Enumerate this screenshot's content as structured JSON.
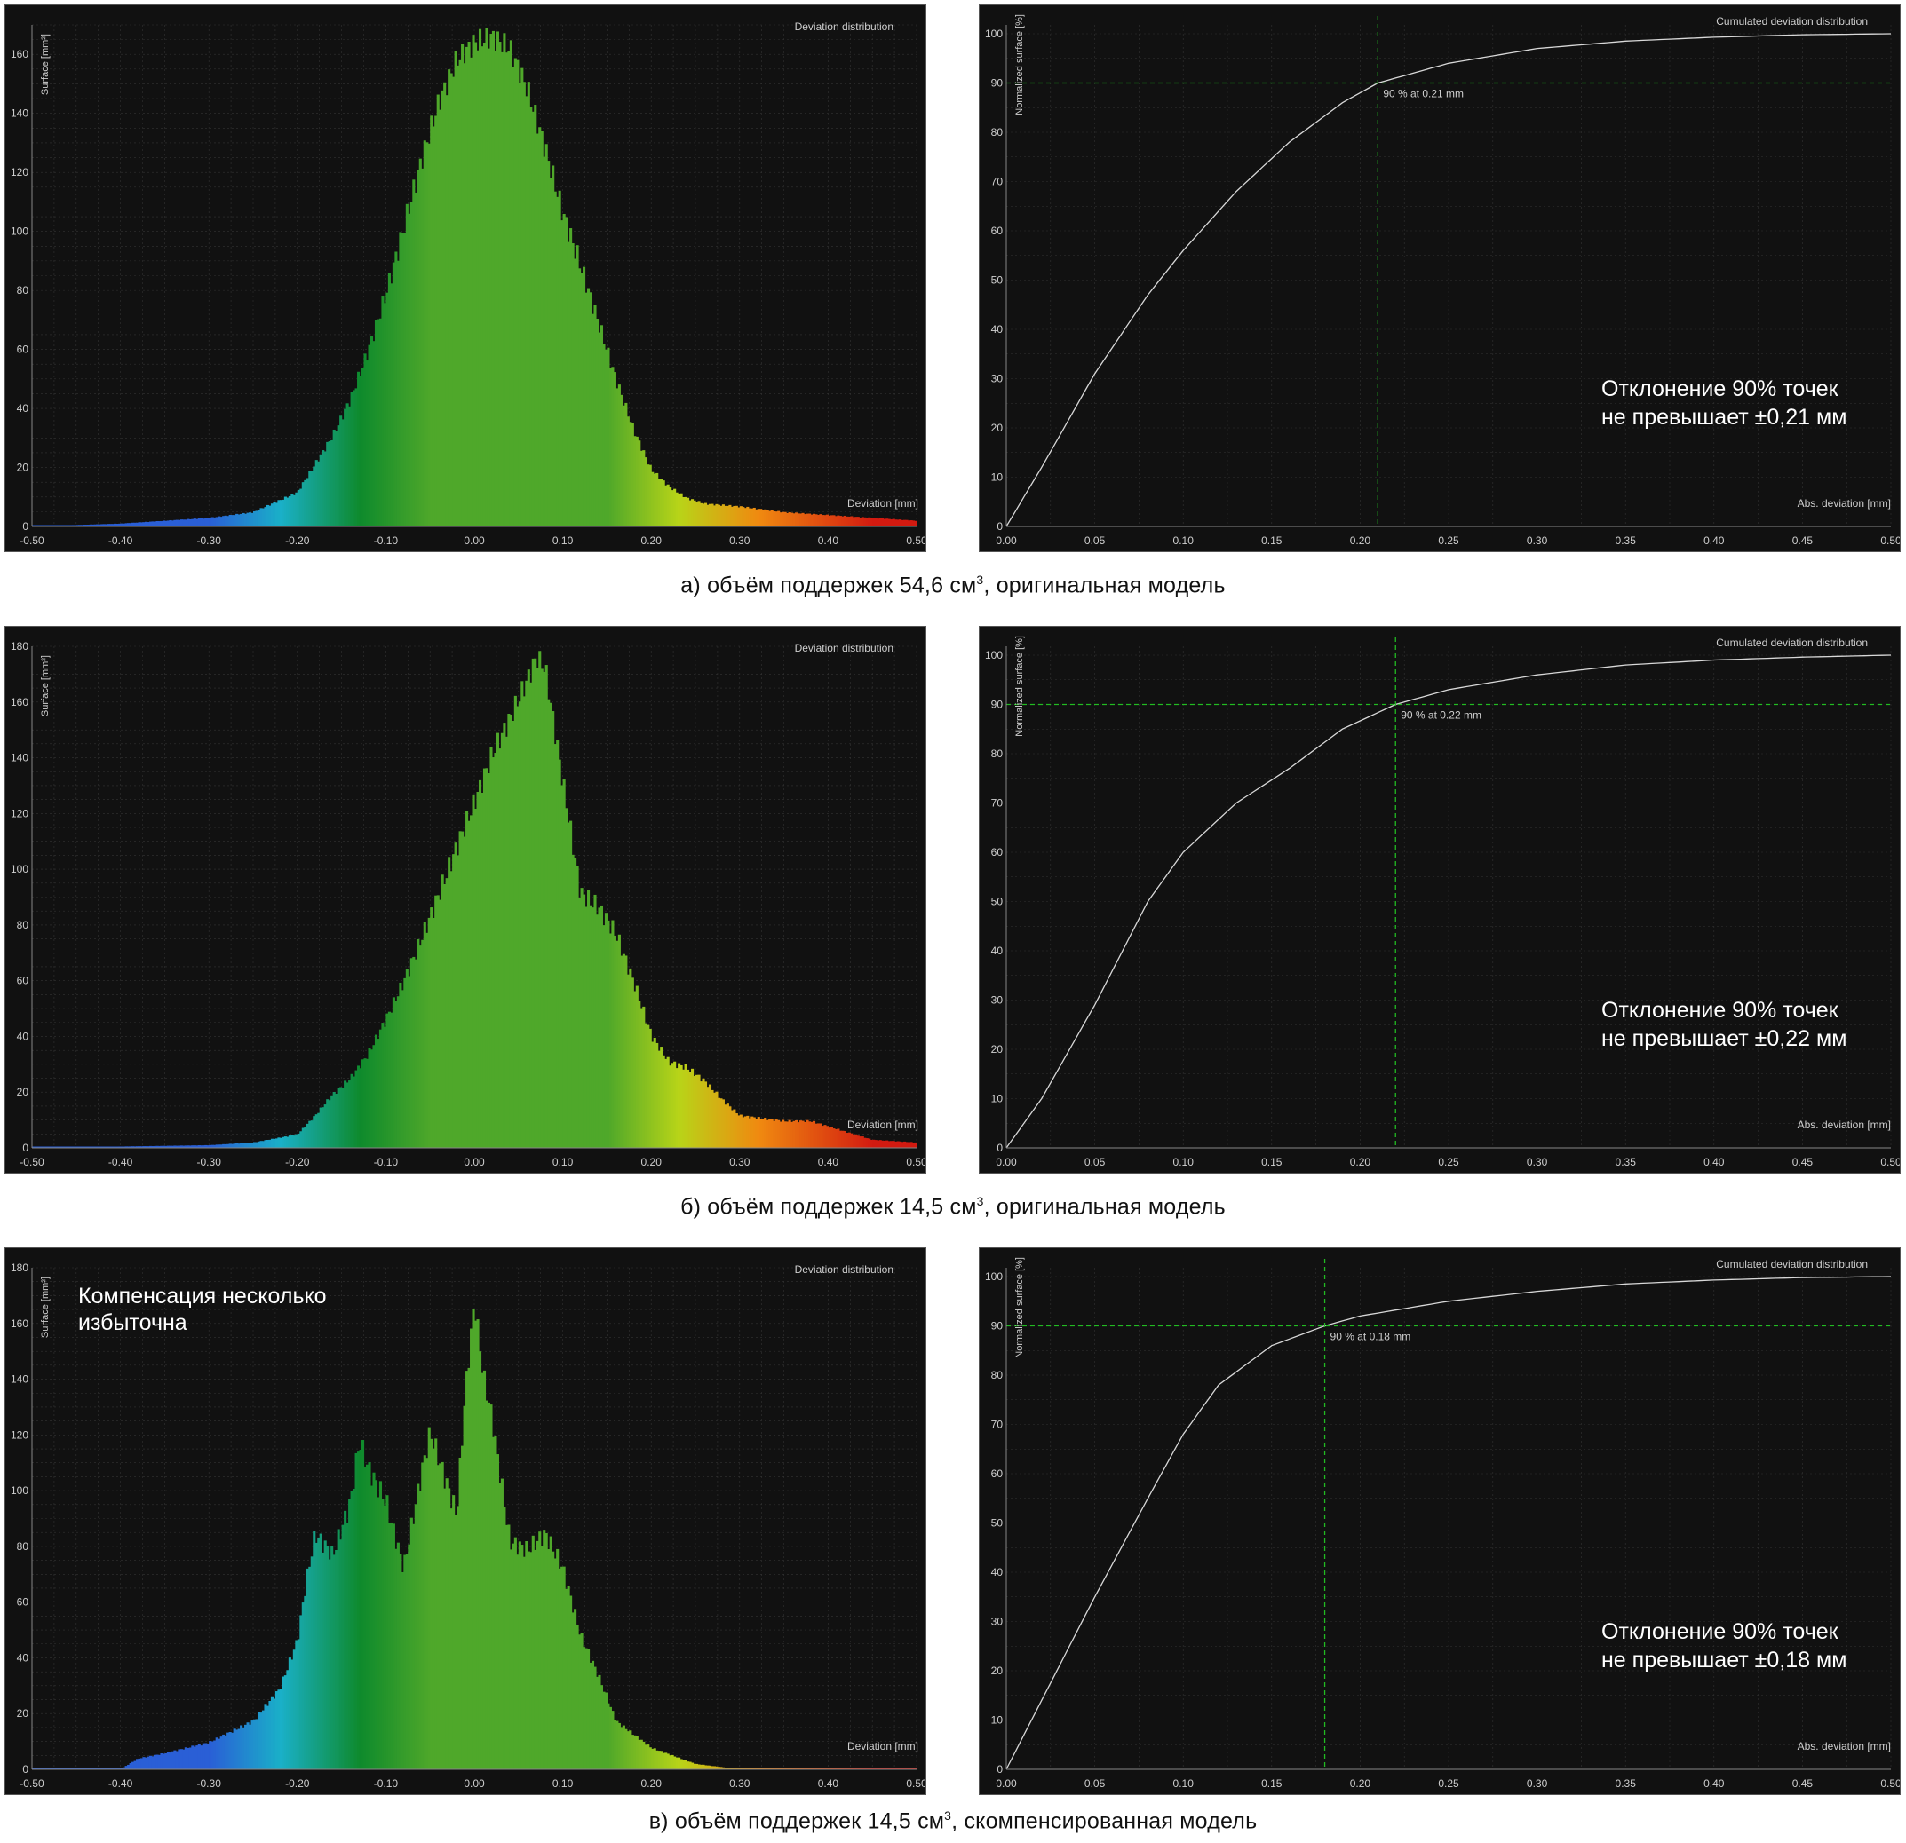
{
  "rows": [
    {
      "caption_prefix": "а) объём поддержек 54,6 см",
      "caption_sup": "3",
      "caption_suffix": ", оригинальная модель",
      "hist": {
        "type": "bar",
        "title": "Deviation distribution",
        "xlabel": "Deviation [mm]",
        "ylabel": "Surface [mm²]",
        "xlim": [
          -0.5,
          0.5
        ],
        "ylim": [
          0,
          170
        ],
        "xticks": [
          "-0.50",
          "-0.40",
          "-0.30",
          "-0.20",
          "-0.10",
          "0.00",
          "0.10",
          "0.20",
          "0.30",
          "0.40",
          "0.50"
        ],
        "yticks": [
          "0",
          "20",
          "40",
          "60",
          "80",
          "100",
          "120",
          "140",
          "160"
        ],
        "x": [
          -0.5,
          -0.45,
          -0.4,
          -0.35,
          -0.3,
          -0.25,
          -0.2,
          -0.18,
          -0.16,
          -0.14,
          -0.12,
          -0.1,
          -0.08,
          -0.06,
          -0.04,
          -0.02,
          0.0,
          0.02,
          0.04,
          0.06,
          0.08,
          0.1,
          0.12,
          0.14,
          0.16,
          0.18,
          0.2,
          0.22,
          0.24,
          0.26,
          0.3,
          0.35,
          0.4,
          0.45,
          0.5
        ],
        "values": [
          0,
          0.5,
          1,
          2,
          3,
          5,
          12,
          22,
          32,
          45,
          62,
          82,
          105,
          128,
          148,
          162,
          168,
          170,
          166,
          152,
          132,
          110,
          92,
          72,
          52,
          34,
          20,
          14,
          10,
          8,
          7,
          5,
          4,
          3,
          2
        ],
        "annotation": ""
      },
      "cum": {
        "type": "line",
        "title": "Cumulated deviation distribution",
        "xlabel": "Abs. deviation [mm]",
        "ylabel": "Normalized surface [%]",
        "xlim": [
          0,
          0.5
        ],
        "ylim": [
          0,
          100
        ],
        "xticks": [
          "0.00",
          "0.05",
          "0.10",
          "0.15",
          "0.20",
          "0.25",
          "0.30",
          "0.35",
          "0.40",
          "0.45",
          "0.50"
        ],
        "yticks": [
          "0",
          "10",
          "20",
          "30",
          "40",
          "50",
          "60",
          "70",
          "80",
          "90",
          "100"
        ],
        "x": [
          0,
          0.02,
          0.05,
          0.08,
          0.1,
          0.13,
          0.16,
          0.19,
          0.21,
          0.25,
          0.3,
          0.35,
          0.4,
          0.45,
          0.5
        ],
        "values": [
          0,
          12,
          31,
          47,
          56,
          68,
          78,
          86,
          90,
          94,
          97,
          98.5,
          99.3,
          99.8,
          100
        ],
        "marker_x": 0.21,
        "marker_y": 90,
        "marker_label": "90 % at 0.21 mm",
        "note_line1": "Отклонение 90% точек",
        "note_line2": "не превышает ±0,21 мм"
      }
    },
    {
      "caption_prefix": "б) объём поддержек 14,5 см",
      "caption_sup": "3",
      "caption_suffix": ", оригинальная модель",
      "hist": {
        "type": "bar",
        "title": "Deviation distribution",
        "xlabel": "Deviation [mm]",
        "ylabel": "Surface [mm²]",
        "xlim": [
          -0.5,
          0.5
        ],
        "ylim": [
          0,
          180
        ],
        "xticks": [
          "-0.50",
          "-0.40",
          "-0.30",
          "-0.20",
          "-0.10",
          "0.00",
          "0.10",
          "0.20",
          "0.30",
          "0.40",
          "0.50"
        ],
        "yticks": [
          "0",
          "20",
          "40",
          "60",
          "80",
          "100",
          "120",
          "140",
          "160",
          "180"
        ],
        "x": [
          -0.5,
          -0.4,
          -0.3,
          -0.25,
          -0.2,
          -0.18,
          -0.16,
          -0.14,
          -0.12,
          -0.1,
          -0.08,
          -0.06,
          -0.04,
          -0.02,
          0.0,
          0.02,
          0.04,
          0.06,
          0.07,
          0.08,
          0.1,
          0.12,
          0.14,
          0.16,
          0.18,
          0.2,
          0.22,
          0.24,
          0.26,
          0.28,
          0.3,
          0.35,
          0.38,
          0.4,
          0.45,
          0.5
        ],
        "values": [
          0,
          0.5,
          1,
          2,
          5,
          12,
          20,
          26,
          35,
          48,
          62,
          78,
          95,
          112,
          128,
          145,
          158,
          172,
          180,
          176,
          135,
          95,
          90,
          80,
          62,
          42,
          32,
          30,
          25,
          18,
          12,
          10,
          10,
          8,
          3,
          2
        ],
        "annotation": ""
      },
      "cum": {
        "type": "line",
        "title": "Cumulated deviation distribution",
        "xlabel": "Abs. deviation [mm]",
        "ylabel": "Normalized surface [%]",
        "xlim": [
          0,
          0.5
        ],
        "ylim": [
          0,
          100
        ],
        "xticks": [
          "0.00",
          "0.05",
          "0.10",
          "0.15",
          "0.20",
          "0.25",
          "0.30",
          "0.35",
          "0.40",
          "0.45",
          "0.50"
        ],
        "yticks": [
          "0",
          "10",
          "20",
          "30",
          "40",
          "50",
          "60",
          "70",
          "80",
          "90",
          "100"
        ],
        "x": [
          0,
          0.02,
          0.05,
          0.08,
          0.1,
          0.13,
          0.16,
          0.19,
          0.22,
          0.25,
          0.3,
          0.35,
          0.4,
          0.45,
          0.5
        ],
        "values": [
          0,
          10,
          29,
          50,
          60,
          70,
          77,
          85,
          90,
          93,
          96,
          98,
          99,
          99.6,
          100
        ],
        "marker_x": 0.22,
        "marker_y": 90,
        "marker_label": "90 % at 0.22 mm",
        "note_line1": "Отклонение 90% точек",
        "note_line2": "не превышает ±0,22 мм"
      }
    },
    {
      "caption_prefix": "в) объём поддержек 14,5 см",
      "caption_sup": "3",
      "caption_suffix": ", скомпенсированная модель",
      "hist": {
        "type": "bar",
        "title": "Deviation distribution",
        "xlabel": "Deviation [mm]",
        "ylabel": "Surface [mm²]",
        "xlim": [
          -0.5,
          0.5
        ],
        "ylim": [
          0,
          180
        ],
        "xticks": [
          "-0.50",
          "-0.40",
          "-0.30",
          "-0.20",
          "-0.10",
          "0.00",
          "0.10",
          "0.20",
          "0.30",
          "0.40",
          "0.50"
        ],
        "yticks": [
          "0",
          "20",
          "40",
          "60",
          "80",
          "100",
          "120",
          "140",
          "160",
          "180"
        ],
        "x": [
          -0.5,
          -0.4,
          -0.38,
          -0.35,
          -0.3,
          -0.25,
          -0.22,
          -0.2,
          -0.19,
          -0.18,
          -0.16,
          -0.14,
          -0.13,
          -0.12,
          -0.1,
          -0.08,
          -0.06,
          -0.05,
          -0.04,
          -0.02,
          -0.01,
          0.0,
          0.01,
          0.02,
          0.04,
          0.06,
          0.08,
          0.1,
          0.12,
          0.14,
          0.16,
          0.2,
          0.25,
          0.3,
          0.5
        ],
        "values": [
          0,
          0,
          4,
          6,
          10,
          18,
          30,
          48,
          70,
          88,
          80,
          100,
          122,
          112,
          100,
          75,
          110,
          125,
          115,
          95,
          140,
          172,
          145,
          130,
          85,
          82,
          88,
          75,
          50,
          35,
          18,
          8,
          2,
          0,
          0
        ],
        "annotation": "Компенсация несколько избыточна",
        "annotation_line1": "Компенсация несколько",
        "annotation_line2": "избыточна"
      },
      "cum": {
        "type": "line",
        "title": "Cumulated deviation distribution",
        "xlabel": "Abs. deviation [mm]",
        "ylabel": "Normalized surface [%]",
        "xlim": [
          0,
          0.5
        ],
        "ylim": [
          0,
          100
        ],
        "xticks": [
          "0.00",
          "0.05",
          "0.10",
          "0.15",
          "0.20",
          "0.25",
          "0.30",
          "0.35",
          "0.40",
          "0.45",
          "0.50"
        ],
        "yticks": [
          "0",
          "10",
          "20",
          "30",
          "40",
          "50",
          "60",
          "70",
          "80",
          "90",
          "100"
        ],
        "x": [
          0,
          0.02,
          0.05,
          0.08,
          0.1,
          0.12,
          0.15,
          0.18,
          0.2,
          0.25,
          0.3,
          0.35,
          0.4,
          0.45,
          0.5
        ],
        "values": [
          0,
          14,
          35,
          55,
          68,
          78,
          86,
          90,
          92,
          95,
          97,
          98.5,
          99.3,
          99.8,
          100
        ],
        "marker_x": 0.18,
        "marker_y": 90,
        "marker_label": "90 % at 0.18 mm",
        "note_line1": "Отклонение 90% точек",
        "note_line2": "не превышает ±0,18 мм"
      }
    }
  ],
  "colors": {
    "panel_bg": "#111111",
    "grid": "#333333",
    "axis_text": "#cfcfcf",
    "cum_line": "#d8d8d8",
    "marker": "#22bb22",
    "hist_blue": "#2a5fd6",
    "hist_cyan": "#1ab0c8",
    "hist_green_dark": "#0e8a2c",
    "hist_green": "#4fa82a",
    "hist_yellow": "#b8d418",
    "hist_orange": "#f08a10",
    "hist_red": "#d21a10"
  }
}
